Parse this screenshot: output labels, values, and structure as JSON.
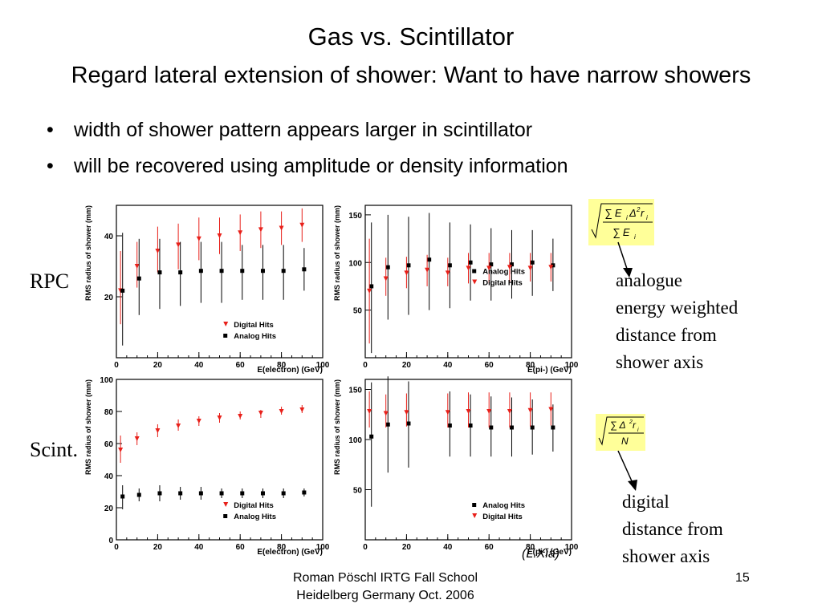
{
  "title": "Gas vs. Scintillator",
  "subtitle": "Regard lateral extension of shower: Want to have narrow showers",
  "bullets": [
    "width of shower pattern appears larger in scintillator",
    "will be recovered using amplitude or density information"
  ],
  "row_labels": {
    "rpc": "RPC",
    "scint": "Scint."
  },
  "annotations": {
    "analogue": [
      "analogue",
      "energy weighted",
      "distance from",
      "shower axis"
    ],
    "digital": [
      "digital",
      "distance from",
      "shower axis"
    ]
  },
  "credit": "(L.Xia)",
  "footer": {
    "line1": "Roman Pöschl IRTG Fall School",
    "line2": "Heidelberg Germany Oct. 2006",
    "page": "15"
  },
  "colors": {
    "digital": "#e8201a",
    "analog": "#000000"
  },
  "chart_data": [
    {
      "type": "scatter",
      "id": "rpc-electron",
      "xlabel": "E(electron) (GeV)",
      "ylabel": "RMS radius of shower (mm)",
      "xlim": [
        0,
        100
      ],
      "ylim": [
        0,
        50
      ],
      "xticks": [
        0,
        20,
        40,
        60,
        80,
        100
      ],
      "yticks": [
        20,
        40
      ],
      "legend_position": "bottom-right",
      "series": [
        {
          "name": "Digital Hits",
          "marker": "triangle-down",
          "color": "#e8201a",
          "points": [
            {
              "x": 2,
              "y": 22,
              "lo": 11,
              "hi": 35
            },
            {
              "x": 10,
              "y": 30,
              "lo": 23,
              "hi": 38
            },
            {
              "x": 20,
              "y": 35,
              "lo": 28,
              "hi": 43
            },
            {
              "x": 30,
              "y": 37,
              "lo": 29,
              "hi": 44
            },
            {
              "x": 40,
              "y": 39,
              "lo": 32,
              "hi": 46
            },
            {
              "x": 50,
              "y": 40,
              "lo": 34,
              "hi": 46
            },
            {
              "x": 60,
              "y": 41,
              "lo": 35,
              "hi": 47
            },
            {
              "x": 70,
              "y": 42,
              "lo": 36,
              "hi": 48
            },
            {
              "x": 80,
              "y": 42.5,
              "lo": 37,
              "hi": 48
            },
            {
              "x": 90,
              "y": 43.5,
              "lo": 38,
              "hi": 49
            }
          ]
        },
        {
          "name": "Analog Hits",
          "marker": "square",
          "color": "#000000",
          "points": [
            {
              "x": 3,
              "y": 22,
              "lo": 4,
              "hi": 41
            },
            {
              "x": 11,
              "y": 26,
              "lo": 14,
              "hi": 39
            },
            {
              "x": 21,
              "y": 28,
              "lo": 16,
              "hi": 39
            },
            {
              "x": 31,
              "y": 28,
              "lo": 17,
              "hi": 38
            },
            {
              "x": 41,
              "y": 28.5,
              "lo": 18,
              "hi": 38
            },
            {
              "x": 51,
              "y": 28.5,
              "lo": 18,
              "hi": 38
            },
            {
              "x": 61,
              "y": 28.5,
              "lo": 19,
              "hi": 37
            },
            {
              "x": 71,
              "y": 28.5,
              "lo": 19,
              "hi": 37
            },
            {
              "x": 81,
              "y": 28.5,
              "lo": 19,
              "hi": 37
            },
            {
              "x": 91,
              "y": 29,
              "lo": 22,
              "hi": 36
            }
          ]
        }
      ]
    },
    {
      "type": "scatter",
      "id": "rpc-pion",
      "xlabel": "E(pi-) (GeV)",
      "ylabel": "RMS radius of shower (mm)",
      "xlim": [
        0,
        100
      ],
      "ylim": [
        0,
        160
      ],
      "xticks": [
        0,
        20,
        40,
        60,
        80,
        100
      ],
      "yticks": [
        50,
        100,
        150
      ],
      "legend_position": "right",
      "series": [
        {
          "name": "Analog Hits",
          "marker": "square",
          "color": "#000000",
          "points": [
            {
              "x": 3,
              "y": 75,
              "lo": 5,
              "hi": 142
            },
            {
              "x": 11,
              "y": 95,
              "lo": 40,
              "hi": 150
            },
            {
              "x": 21,
              "y": 97,
              "lo": 45,
              "hi": 148
            },
            {
              "x": 31,
              "y": 103,
              "lo": 50,
              "hi": 152
            },
            {
              "x": 41,
              "y": 97,
              "lo": 52,
              "hi": 142
            },
            {
              "x": 51,
              "y": 100,
              "lo": 60,
              "hi": 140
            },
            {
              "x": 61,
              "y": 98,
              "lo": 60,
              "hi": 136
            },
            {
              "x": 71,
              "y": 98,
              "lo": 62,
              "hi": 134
            },
            {
              "x": 81,
              "y": 100,
              "lo": 65,
              "hi": 134
            },
            {
              "x": 91,
              "y": 97,
              "lo": 70,
              "hi": 125
            }
          ]
        },
        {
          "name": "Digital Hits",
          "marker": "triangle-down",
          "color": "#e8201a",
          "points": [
            {
              "x": 2,
              "y": 70,
              "lo": 15,
              "hi": 125
            },
            {
              "x": 10,
              "y": 83,
              "lo": 65,
              "hi": 105
            },
            {
              "x": 20,
              "y": 89,
              "lo": 73,
              "hi": 106
            },
            {
              "x": 30,
              "y": 92,
              "lo": 75,
              "hi": 108
            },
            {
              "x": 40,
              "y": 89,
              "lo": 75,
              "hi": 105
            },
            {
              "x": 50,
              "y": 94,
              "lo": 78,
              "hi": 110
            },
            {
              "x": 60,
              "y": 94,
              "lo": 78,
              "hi": 110
            },
            {
              "x": 70,
              "y": 95,
              "lo": 80,
              "hi": 110
            },
            {
              "x": 80,
              "y": 94,
              "lo": 80,
              "hi": 110
            },
            {
              "x": 90,
              "y": 95,
              "lo": 80,
              "hi": 110
            }
          ]
        }
      ]
    },
    {
      "type": "scatter",
      "id": "scint-electron",
      "xlabel": "E(electron) (GeV)",
      "ylabel": "RMS radius of shower (mm)",
      "xlim": [
        0,
        100
      ],
      "ylim": [
        0,
        100
      ],
      "xticks": [
        0,
        20,
        40,
        60,
        80,
        100
      ],
      "yticks": [
        0,
        20,
        40,
        60,
        80,
        100
      ],
      "legend_position": "bottom-right",
      "series": [
        {
          "name": "Digital Hits",
          "marker": "triangle-down",
          "color": "#e8201a",
          "points": [
            {
              "x": 2,
              "y": 56,
              "lo": 48,
              "hi": 65
            },
            {
              "x": 10,
              "y": 63,
              "lo": 59,
              "hi": 67
            },
            {
              "x": 20,
              "y": 68,
              "lo": 64,
              "hi": 72
            },
            {
              "x": 30,
              "y": 71,
              "lo": 68,
              "hi": 75
            },
            {
              "x": 40,
              "y": 74,
              "lo": 71,
              "hi": 77
            },
            {
              "x": 50,
              "y": 76,
              "lo": 73,
              "hi": 79
            },
            {
              "x": 60,
              "y": 77,
              "lo": 75,
              "hi": 80
            },
            {
              "x": 70,
              "y": 79,
              "lo": 76,
              "hi": 81
            },
            {
              "x": 80,
              "y": 80,
              "lo": 78,
              "hi": 83
            },
            {
              "x": 90,
              "y": 81,
              "lo": 79,
              "hi": 84
            }
          ]
        },
        {
          "name": "Analog Hits",
          "marker": "square",
          "color": "#000000",
          "points": [
            {
              "x": 3,
              "y": 27,
              "lo": 19,
              "hi": 34
            },
            {
              "x": 11,
              "y": 28,
              "lo": 24,
              "hi": 32
            },
            {
              "x": 21,
              "y": 29,
              "lo": 24,
              "hi": 34
            },
            {
              "x": 31,
              "y": 29,
              "lo": 25,
              "hi": 33
            },
            {
              "x": 41,
              "y": 29,
              "lo": 25,
              "hi": 33
            },
            {
              "x": 51,
              "y": 29,
              "lo": 26,
              "hi": 32
            },
            {
              "x": 61,
              "y": 29,
              "lo": 26,
              "hi": 32
            },
            {
              "x": 71,
              "y": 29,
              "lo": 26,
              "hi": 32
            },
            {
              "x": 81,
              "y": 29,
              "lo": 26,
              "hi": 32
            },
            {
              "x": 91,
              "y": 29.5,
              "lo": 27,
              "hi": 32
            }
          ]
        }
      ]
    },
    {
      "type": "scatter",
      "id": "scint-pion",
      "xlabel": "E(pi-) (GeV)",
      "ylabel": "RMS radius of shower (mm)",
      "xlim": [
        0,
        100
      ],
      "ylim": [
        0,
        160
      ],
      "xticks": [
        0,
        20,
        40,
        60,
        80,
        100
      ],
      "yticks": [
        50,
        100,
        150
      ],
      "legend_position": "bottom-right",
      "series": [
        {
          "name": "Analog Hits",
          "marker": "square",
          "color": "#000000",
          "points": [
            {
              "x": 3,
              "y": 103,
              "lo": 33,
              "hi": 157
            },
            {
              "x": 11,
              "y": 115,
              "lo": 67,
              "hi": 163
            },
            {
              "x": 21,
              "y": 116,
              "lo": 72,
              "hi": 158
            },
            {
              "x": 41,
              "y": 114,
              "lo": 83,
              "hi": 148
            },
            {
              "x": 51,
              "y": 114,
              "lo": 83,
              "hi": 145
            },
            {
              "x": 61,
              "y": 112,
              "lo": 83,
              "hi": 143
            },
            {
              "x": 71,
              "y": 112,
              "lo": 83,
              "hi": 142
            },
            {
              "x": 81,
              "y": 112,
              "lo": 85,
              "hi": 140
            },
            {
              "x": 91,
              "y": 112,
              "lo": 88,
              "hi": 135
            }
          ]
        },
        {
          "name": "Digital Hits",
          "marker": "triangle-down",
          "color": "#e8201a",
          "points": [
            {
              "x": 2,
              "y": 128,
              "lo": 112,
              "hi": 148
            },
            {
              "x": 10,
              "y": 126,
              "lo": 112,
              "hi": 145
            },
            {
              "x": 20,
              "y": 127,
              "lo": 113,
              "hi": 146
            },
            {
              "x": 40,
              "y": 127,
              "lo": 112,
              "hi": 146
            },
            {
              "x": 50,
              "y": 128,
              "lo": 112,
              "hi": 147
            },
            {
              "x": 60,
              "y": 128,
              "lo": 112,
              "hi": 147
            },
            {
              "x": 70,
              "y": 128,
              "lo": 112,
              "hi": 147
            },
            {
              "x": 80,
              "y": 129,
              "lo": 113,
              "hi": 147
            },
            {
              "x": 90,
              "y": 130,
              "lo": 114,
              "hi": 147
            }
          ]
        }
      ]
    }
  ]
}
